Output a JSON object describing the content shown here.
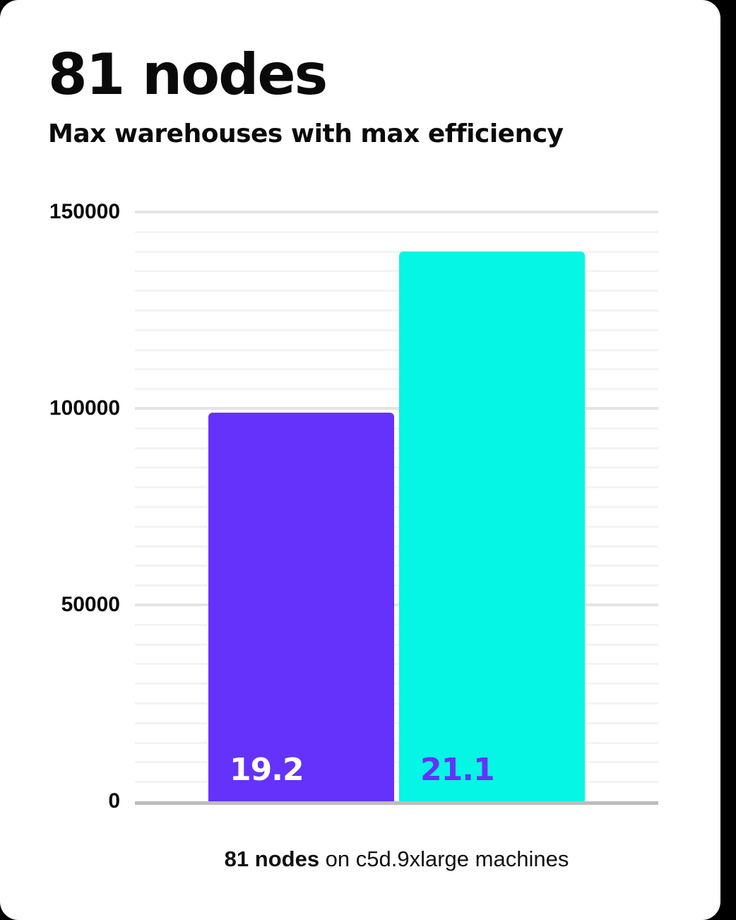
{
  "header": {
    "title": "81 nodes",
    "subtitle": "Max warehouses with max efficiency"
  },
  "caption": {
    "bold": "81 nodes",
    "rest": " on c5d.9xlarge machines"
  },
  "colors": {
    "page_background": "#000000",
    "card_background": "#ffffff",
    "text": "#0a0a0a",
    "bar_primary": "#6432fa",
    "bar_secondary": "#05f6e5",
    "bar_label_primary": "#ffffff",
    "bar_label_secondary": "#6432fa",
    "grid_major": "#e4e4e4",
    "grid_minor": "#f3f3f3",
    "axis_line": "#bcbcbc"
  },
  "chart_data": {
    "type": "bar",
    "title": "81 nodes",
    "subtitle": "Max warehouses with max efficiency",
    "caption": "81 nodes on c5d.9xlarge machines",
    "categories": [
      "19.2",
      "21.1"
    ],
    "values": [
      99000,
      140000
    ],
    "bars": [
      {
        "label": "19.2",
        "value": 99000,
        "color": "#6432fa",
        "label_color": "#ffffff"
      },
      {
        "label": "21.1",
        "value": 140000,
        "color": "#05f6e5",
        "label_color": "#6432fa"
      }
    ],
    "xlabel": "",
    "ylabel": "",
    "ylim": [
      0,
      150000
    ],
    "yticks": [
      0,
      50000,
      100000,
      150000
    ],
    "ytick_labels": [
      "0",
      "50000",
      "100000",
      "150000"
    ],
    "minor_gridline_step": 5000,
    "major_gridline_step": 50000,
    "grid": "horizontal",
    "legend": "none"
  }
}
